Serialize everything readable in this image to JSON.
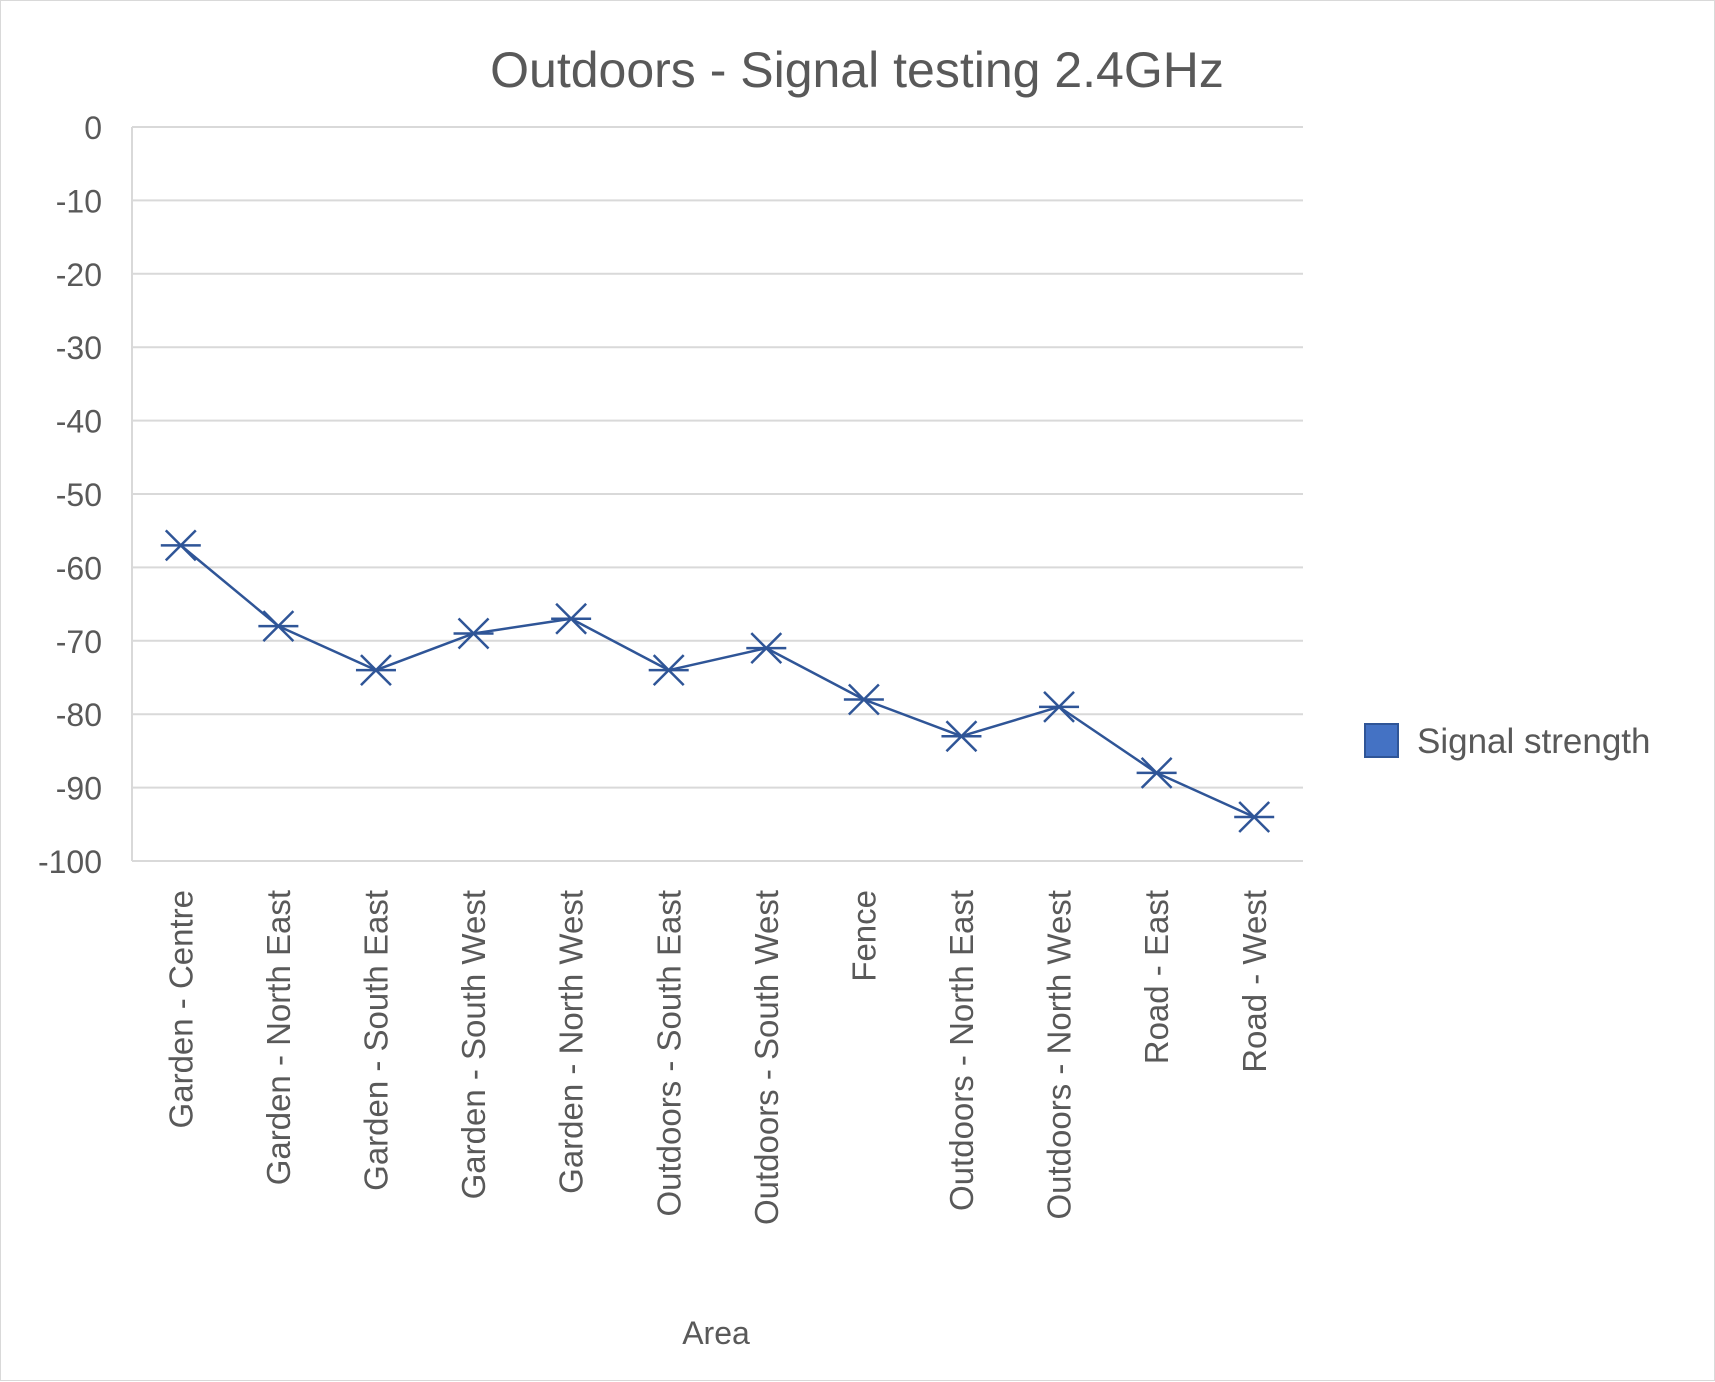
{
  "chart_data": {
    "type": "line",
    "title": "Outdoors - Signal testing 2.4GHz",
    "xlabel": "Area",
    "ylabel": "",
    "categories": [
      "Garden - Centre",
      "Garden - North East",
      "Garden - South East",
      "Garden - South West",
      "Garden - North West",
      "Outdoors - South East",
      "Outdoors - South West",
      "Fence",
      "Outdoors - North East",
      "Outdoors - North West",
      "Road - East",
      "Road - West"
    ],
    "series": [
      {
        "name": "Signal strength",
        "values": [
          -57,
          -68,
          -74,
          -69,
          -67,
          -74,
          -71,
          -78,
          -83,
          -79,
          -88,
          -94
        ],
        "color": "#2f5597",
        "legend_color": "#4472c4",
        "marker": "star"
      }
    ],
    "ylim": [
      -100,
      0
    ],
    "yticks": [
      0,
      -10,
      -20,
      -30,
      -40,
      -50,
      -60,
      -70,
      -80,
      -90,
      -100
    ],
    "grid": true,
    "legend_position": "right"
  }
}
